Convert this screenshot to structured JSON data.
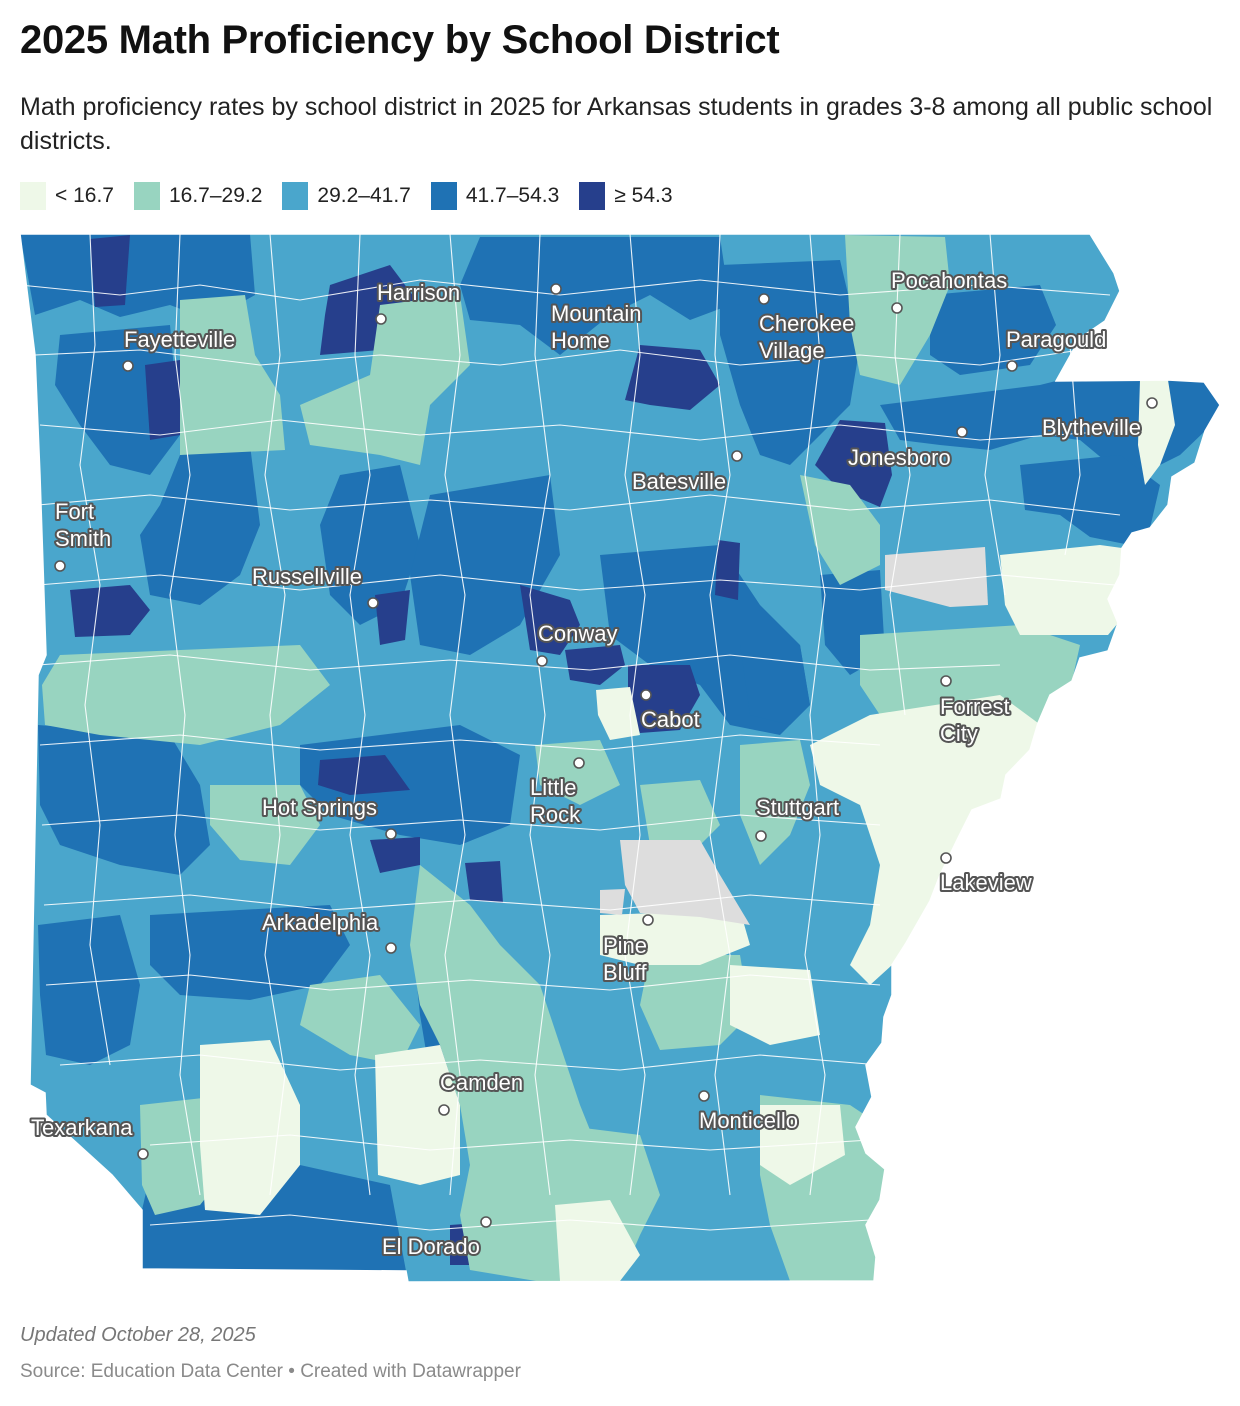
{
  "title": "2025 Math Proficiency by School District",
  "subtitle": "Math proficiency rates by school district in 2025 for Arkansas students in grades 3-8 among all public school districts.",
  "legend": [
    {
      "label": "< 16.7",
      "color": "#eef8e8"
    },
    {
      "label": "16.7–29.2",
      "color": "#98d4c0"
    },
    {
      "label": "29.2–41.7",
      "color": "#4aa6cc"
    },
    {
      "label": "41.7–54.3",
      "color": "#1f72b4"
    },
    {
      "label": "≥ 54.3",
      "color": "#263f8c"
    }
  ],
  "no_data_color": "#dddddd",
  "cities": [
    {
      "name": "Fayetteville",
      "lines": [
        "Fayetteville"
      ]
    },
    {
      "name": "Harrison",
      "lines": [
        "Harrison"
      ]
    },
    {
      "name": "Mountain Home",
      "lines": [
        "Mountain",
        "Home"
      ]
    },
    {
      "name": "Cherokee Village",
      "lines": [
        "Cherokee",
        "Village"
      ]
    },
    {
      "name": "Pocahontas",
      "lines": [
        "Pocahontas"
      ]
    },
    {
      "name": "Paragould",
      "lines": [
        "Paragould"
      ]
    },
    {
      "name": "Blytheville",
      "lines": [
        "Blytheville"
      ]
    },
    {
      "name": "Jonesboro",
      "lines": [
        "Jonesboro"
      ]
    },
    {
      "name": "Batesville",
      "lines": [
        "Batesville"
      ]
    },
    {
      "name": "Fort Smith",
      "lines": [
        "Fort",
        "Smith"
      ]
    },
    {
      "name": "Russellville",
      "lines": [
        "Russellville"
      ]
    },
    {
      "name": "Conway",
      "lines": [
        "Conway"
      ]
    },
    {
      "name": "Cabot",
      "lines": [
        "Cabot"
      ]
    },
    {
      "name": "Forrest City",
      "lines": [
        "Forrest",
        "City"
      ]
    },
    {
      "name": "Little Rock",
      "lines": [
        "Little",
        "Rock"
      ]
    },
    {
      "name": "Hot Springs",
      "lines": [
        "Hot Springs"
      ]
    },
    {
      "name": "Stuttgart",
      "lines": [
        "Stuttgart"
      ]
    },
    {
      "name": "Lakeview",
      "lines": [
        "Lakeview"
      ]
    },
    {
      "name": "Arkadelphia",
      "lines": [
        "Arkadelphia"
      ]
    },
    {
      "name": "Pine Bluff",
      "lines": [
        "Pine",
        "Bluff"
      ]
    },
    {
      "name": "Camden",
      "lines": [
        "Camden"
      ]
    },
    {
      "name": "Monticello",
      "lines": [
        "Monticello"
      ]
    },
    {
      "name": "Texarkana",
      "lines": [
        "Texarkana"
      ]
    },
    {
      "name": "El Dorado",
      "lines": [
        "El Dorado"
      ]
    }
  ],
  "footer": {
    "updated": "Updated October 28, 2025",
    "source": "Source: Education Data Center • Created with Datawrapper"
  }
}
